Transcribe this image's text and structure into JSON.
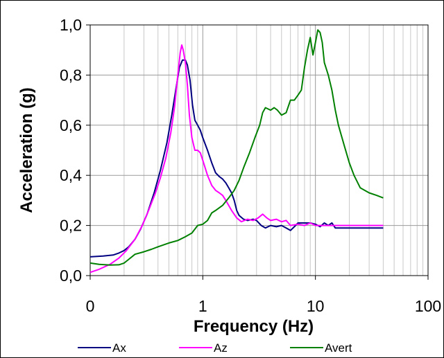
{
  "chart_data": {
    "type": "line",
    "title": "",
    "xlabel": "Frequency (Hz)",
    "ylabel": "Acceleration (g)",
    "xscale": "log",
    "xlim": [
      0.1,
      100
    ],
    "ylim": [
      0,
      1
    ],
    "grid": true,
    "legend": "bottom",
    "x_tick_labels": [
      {
        "value": 0.1,
        "label": "0"
      },
      {
        "value": 1,
        "label": "1"
      },
      {
        "value": 10,
        "label": "10"
      },
      {
        "value": 100,
        "label": "100"
      }
    ],
    "y_tick_labels": [
      {
        "value": 0.0,
        "label": "0,0"
      },
      {
        "value": 0.2,
        "label": "0,2"
      },
      {
        "value": 0.4,
        "label": "0,4"
      },
      {
        "value": 0.6,
        "label": "0,6"
      },
      {
        "value": 0.8,
        "label": "0,8"
      },
      {
        "value": 1.0,
        "label": "1,0"
      }
    ],
    "series": [
      {
        "name": "Ax",
        "color": "#000080",
        "points": [
          [
            0.1,
            0.075
          ],
          [
            0.13,
            0.078
          ],
          [
            0.16,
            0.082
          ],
          [
            0.18,
            0.09
          ],
          [
            0.2,
            0.1
          ],
          [
            0.22,
            0.115
          ],
          [
            0.25,
            0.145
          ],
          [
            0.28,
            0.185
          ],
          [
            0.32,
            0.245
          ],
          [
            0.37,
            0.33
          ],
          [
            0.42,
            0.42
          ],
          [
            0.48,
            0.53
          ],
          [
            0.53,
            0.64
          ],
          [
            0.58,
            0.75
          ],
          [
            0.62,
            0.83
          ],
          [
            0.66,
            0.86
          ],
          [
            0.7,
            0.86
          ],
          [
            0.73,
            0.84
          ],
          [
            0.77,
            0.78
          ],
          [
            0.81,
            0.68
          ],
          [
            0.85,
            0.62
          ],
          [
            0.9,
            0.6
          ],
          [
            0.95,
            0.58
          ],
          [
            1.0,
            0.55
          ],
          [
            1.1,
            0.5
          ],
          [
            1.2,
            0.45
          ],
          [
            1.3,
            0.41
          ],
          [
            1.4,
            0.395
          ],
          [
            1.5,
            0.385
          ],
          [
            1.6,
            0.37
          ],
          [
            1.7,
            0.35
          ],
          [
            1.8,
            0.33
          ],
          [
            1.9,
            0.3
          ],
          [
            2.0,
            0.26
          ],
          [
            2.1,
            0.24
          ],
          [
            2.3,
            0.225
          ],
          [
            2.5,
            0.22
          ],
          [
            2.8,
            0.225
          ],
          [
            3.0,
            0.22
          ],
          [
            3.3,
            0.2
          ],
          [
            3.6,
            0.19
          ],
          [
            4.0,
            0.2
          ],
          [
            4.5,
            0.195
          ],
          [
            5.0,
            0.2
          ],
          [
            5.5,
            0.19
          ],
          [
            6.0,
            0.18
          ],
          [
            6.5,
            0.195
          ],
          [
            7.0,
            0.21
          ],
          [
            8.0,
            0.21
          ],
          [
            9.0,
            0.21
          ],
          [
            10.0,
            0.205
          ],
          [
            11.0,
            0.195
          ],
          [
            12.0,
            0.21
          ],
          [
            13.0,
            0.2
          ],
          [
            14.0,
            0.21
          ],
          [
            15.0,
            0.19
          ],
          [
            16.0,
            0.19
          ],
          [
            20.0,
            0.19
          ],
          [
            30.0,
            0.19
          ],
          [
            40.0,
            0.19
          ]
        ]
      },
      {
        "name": "Az",
        "color": "#ff00ff",
        "points": [
          [
            0.1,
            0.013
          ],
          [
            0.12,
            0.025
          ],
          [
            0.15,
            0.045
          ],
          [
            0.18,
            0.07
          ],
          [
            0.21,
            0.1
          ],
          [
            0.25,
            0.145
          ],
          [
            0.29,
            0.2
          ],
          [
            0.33,
            0.26
          ],
          [
            0.38,
            0.33
          ],
          [
            0.42,
            0.39
          ],
          [
            0.47,
            0.47
          ],
          [
            0.52,
            0.57
          ],
          [
            0.56,
            0.67
          ],
          [
            0.6,
            0.8
          ],
          [
            0.63,
            0.89
          ],
          [
            0.65,
            0.92
          ],
          [
            0.67,
            0.9
          ],
          [
            0.7,
            0.85
          ],
          [
            0.73,
            0.76
          ],
          [
            0.76,
            0.64
          ],
          [
            0.8,
            0.55
          ],
          [
            0.85,
            0.5
          ],
          [
            0.9,
            0.5
          ],
          [
            0.95,
            0.49
          ],
          [
            1.0,
            0.46
          ],
          [
            1.1,
            0.4
          ],
          [
            1.2,
            0.36
          ],
          [
            1.3,
            0.34
          ],
          [
            1.4,
            0.33
          ],
          [
            1.5,
            0.32
          ],
          [
            1.6,
            0.3
          ],
          [
            1.8,
            0.26
          ],
          [
            2.0,
            0.23
          ],
          [
            2.2,
            0.215
          ],
          [
            2.5,
            0.225
          ],
          [
            2.8,
            0.22
          ],
          [
            3.1,
            0.23
          ],
          [
            3.4,
            0.245
          ],
          [
            3.7,
            0.23
          ],
          [
            4.0,
            0.22
          ],
          [
            4.5,
            0.225
          ],
          [
            5.0,
            0.215
          ],
          [
            5.5,
            0.22
          ],
          [
            6.0,
            0.2
          ],
          [
            7.0,
            0.205
          ],
          [
            8.0,
            0.2
          ],
          [
            9.0,
            0.21
          ],
          [
            10.0,
            0.2
          ],
          [
            12.0,
            0.2
          ],
          [
            15.0,
            0.2
          ],
          [
            20.0,
            0.2
          ],
          [
            30.0,
            0.2
          ],
          [
            40.0,
            0.2
          ]
        ]
      },
      {
        "name": "Avert",
        "color": "#008000",
        "points": [
          [
            0.1,
            0.05
          ],
          [
            0.12,
            0.045
          ],
          [
            0.15,
            0.042
          ],
          [
            0.18,
            0.043
          ],
          [
            0.2,
            0.05
          ],
          [
            0.22,
            0.065
          ],
          [
            0.25,
            0.085
          ],
          [
            0.3,
            0.095
          ],
          [
            0.35,
            0.105
          ],
          [
            0.4,
            0.115
          ],
          [
            0.5,
            0.13
          ],
          [
            0.6,
            0.14
          ],
          [
            0.7,
            0.155
          ],
          [
            0.8,
            0.17
          ],
          [
            0.9,
            0.2
          ],
          [
            1.0,
            0.205
          ],
          [
            1.1,
            0.22
          ],
          [
            1.2,
            0.25
          ],
          [
            1.3,
            0.26
          ],
          [
            1.5,
            0.28
          ],
          [
            1.7,
            0.31
          ],
          [
            1.9,
            0.34
          ],
          [
            2.1,
            0.38
          ],
          [
            2.3,
            0.43
          ],
          [
            2.6,
            0.49
          ],
          [
            2.9,
            0.55
          ],
          [
            3.2,
            0.6
          ],
          [
            3.4,
            0.65
          ],
          [
            3.6,
            0.67
          ],
          [
            4.0,
            0.66
          ],
          [
            4.3,
            0.67
          ],
          [
            4.6,
            0.66
          ],
          [
            5.0,
            0.64
          ],
          [
            5.5,
            0.65
          ],
          [
            6.0,
            0.7
          ],
          [
            6.5,
            0.7
          ],
          [
            7.0,
            0.72
          ],
          [
            7.5,
            0.74
          ],
          [
            8.0,
            0.83
          ],
          [
            8.5,
            0.9
          ],
          [
            9.0,
            0.95
          ],
          [
            9.5,
            0.88
          ],
          [
            10.0,
            0.93
          ],
          [
            10.5,
            0.98
          ],
          [
            11.0,
            0.97
          ],
          [
            11.5,
            0.93
          ],
          [
            12.0,
            0.85
          ],
          [
            13.0,
            0.8
          ],
          [
            14.0,
            0.74
          ],
          [
            15.0,
            0.66
          ],
          [
            16.0,
            0.6
          ],
          [
            18.0,
            0.52
          ],
          [
            20.0,
            0.45
          ],
          [
            22.0,
            0.4
          ],
          [
            25.0,
            0.35
          ],
          [
            30.0,
            0.33
          ],
          [
            35.0,
            0.32
          ],
          [
            40.0,
            0.31
          ]
        ]
      }
    ]
  }
}
